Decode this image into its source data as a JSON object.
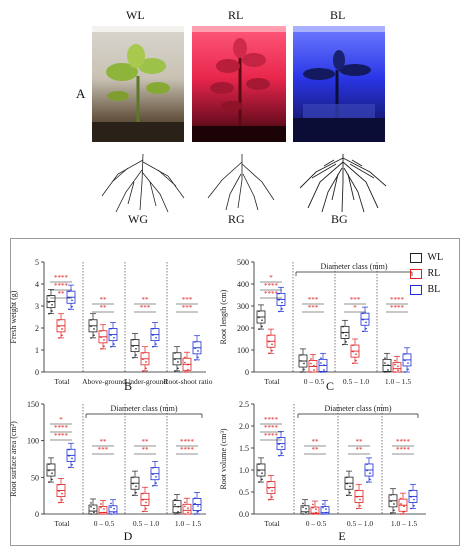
{
  "figure": {
    "top_labels": [
      "WL",
      "RL",
      "BL"
    ],
    "bottom_labels": [
      "WG",
      "RG",
      "BG"
    ],
    "panel_a": "A",
    "panel_b": "B",
    "panel_c": "C",
    "panel_d": "D",
    "panel_e": "E",
    "legend": [
      "WL",
      "RL",
      "BL"
    ],
    "colors": {
      "WL": "#222222",
      "RL": "#e02020",
      "BL": "#1c2fd6"
    }
  },
  "chart_data": [
    {
      "type": "box",
      "panel": "B",
      "ylabel": "Fresh weight (g)",
      "ylim": [
        0,
        5
      ],
      "yticks": [
        "0",
        "1",
        "2",
        "3",
        "4",
        "5"
      ],
      "categories": [
        "Total",
        "Above-ground",
        "Under-ground",
        "Root-shoot ratio"
      ],
      "series": [
        {
          "name": "WL",
          "median": [
            3.2,
            2.1,
            1.2,
            0.6
          ]
        },
        {
          "name": "RL",
          "median": [
            2.1,
            1.6,
            0.6,
            0.35
          ]
        },
        {
          "name": "BL",
          "median": [
            3.4,
            1.7,
            1.7,
            1.1
          ]
        }
      ],
      "sig": [
        {
          "text": "****"
        },
        {
          "text": "****"
        },
        {
          "text": "**"
        },
        {
          "text": "**"
        },
        {
          "text": "**"
        },
        {
          "text": "**"
        },
        {
          "text": "***"
        },
        {
          "text": "***"
        },
        {
          "text": "***"
        },
        {
          "text": "***"
        }
      ]
    },
    {
      "type": "box",
      "panel": "C",
      "ylabel": "Root length (cm)",
      "ylim": [
        0,
        500
      ],
      "yticks": [
        "0",
        "100",
        "200",
        "300",
        "400",
        "500"
      ],
      "xlabel_group": "Diameter class (mm)",
      "categories": [
        "Total",
        "0 – 0.5",
        "0.5 – 1.0",
        "1.0 – 1.5"
      ],
      "series": [
        {
          "name": "WL",
          "median": [
            250,
            50,
            180,
            30
          ]
        },
        {
          "name": "RL",
          "median": [
            140,
            25,
            95,
            15
          ]
        },
        {
          "name": "BL",
          "median": [
            330,
            30,
            240,
            55
          ]
        }
      ],
      "sig": [
        {
          "text": "*"
        },
        {
          "text": "****"
        },
        {
          "text": "****"
        },
        {
          "text": "***"
        },
        {
          "text": "***"
        },
        {
          "text": "***"
        },
        {
          "text": "*"
        },
        {
          "text": "****"
        },
        {
          "text": "****"
        },
        {
          "text": "*"
        },
        {
          "text": "**"
        },
        {
          "text": "**"
        }
      ]
    },
    {
      "type": "box",
      "panel": "D",
      "ylabel": "Root surface area (cm²)",
      "ylim": [
        0,
        150
      ],
      "yticks": [
        "0",
        "50",
        "100",
        "150"
      ],
      "xlabel_group": "Diameter class (mm)",
      "categories": [
        "Total",
        "0 – 0.5",
        "0.5 – 1.0",
        "1.0 – 1.5"
      ],
      "series": [
        {
          "name": "WL",
          "median": [
            60,
            4,
            42,
            10
          ]
        },
        {
          "name": "RL",
          "median": [
            32,
            2,
            20,
            5
          ]
        },
        {
          "name": "BL",
          "median": [
            80,
            3,
            55,
            13
          ]
        }
      ],
      "sig": [
        {
          "text": "*"
        },
        {
          "text": "****"
        },
        {
          "text": "****"
        },
        {
          "text": "**"
        },
        {
          "text": "***"
        },
        {
          "text": "**"
        },
        {
          "text": "**"
        },
        {
          "text": "****"
        },
        {
          "text": "****"
        },
        {
          "text": "**"
        },
        {
          "text": "**"
        },
        {
          "text": "**"
        }
      ]
    },
    {
      "type": "box",
      "panel": "E",
      "ylabel": "Root volume (cm³)",
      "ylim": [
        0,
        2.5
      ],
      "yticks": [
        "0.0",
        "0.5",
        "1.0",
        "1.5",
        "2.0",
        "2.5"
      ],
      "xlabel_group": "Diameter class (mm)",
      "categories": [
        "Total",
        "0 – 0.5",
        "0.5 – 1.0",
        "1.0 – 1.5"
      ],
      "series": [
        {
          "name": "WL",
          "median": [
            1.0,
            0.05,
            0.7,
            0.3
          ]
        },
        {
          "name": "RL",
          "median": [
            0.6,
            0.02,
            0.4,
            0.2
          ]
        },
        {
          "name": "BL",
          "median": [
            1.6,
            0.03,
            1.0,
            0.4
          ]
        }
      ],
      "sig": [
        {
          "text": "****"
        },
        {
          "text": "****"
        },
        {
          "text": "****"
        },
        {
          "text": "**"
        },
        {
          "text": "**"
        },
        {
          "text": "**"
        },
        {
          "text": "**"
        },
        {
          "text": "****"
        },
        {
          "text": "****"
        },
        {
          "text": "**"
        },
        {
          "text": "**"
        },
        {
          "text": "**"
        }
      ]
    }
  ]
}
